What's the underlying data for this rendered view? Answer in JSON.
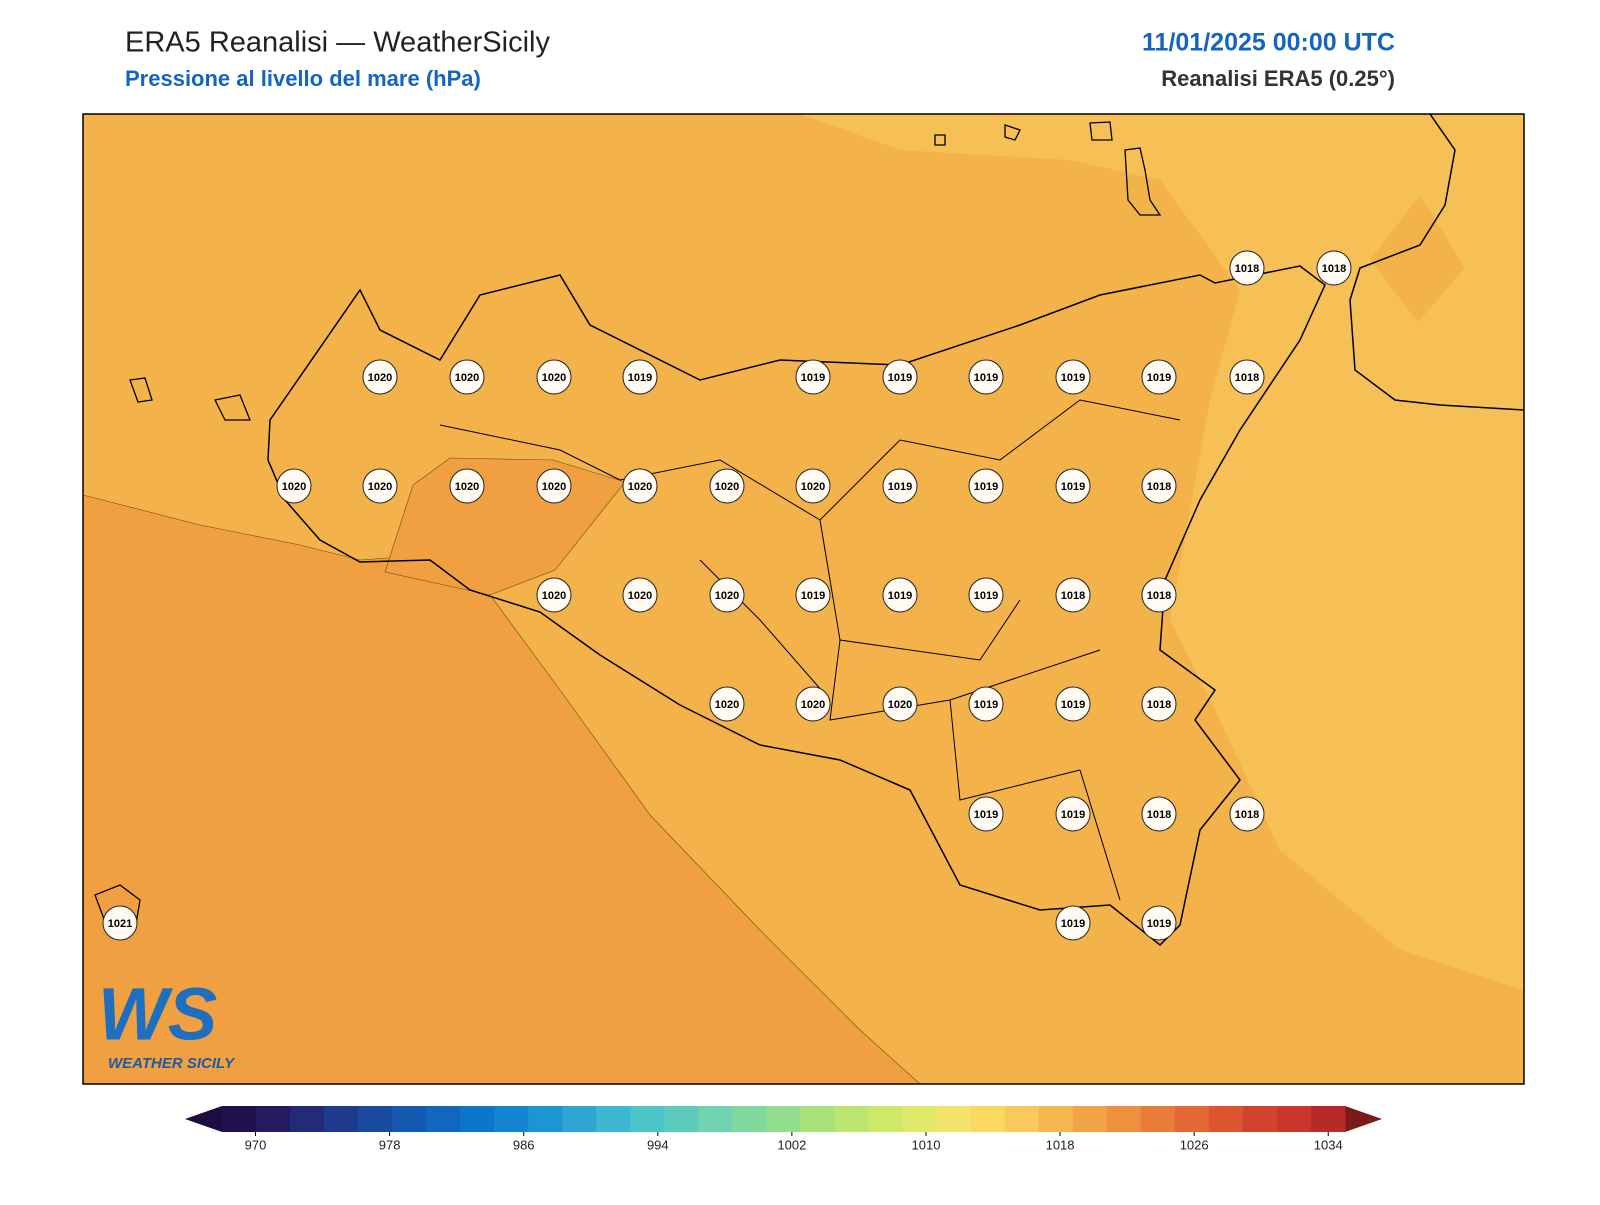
{
  "header": {
    "title": "ERA5 Reanalisi — WeatherSicily",
    "subtitle": "Pressione al livello del mare (hPa)",
    "date": "11/01/2025 00:00 UTC",
    "source": "Reanalisi ERA5 (0.25°)"
  },
  "stations": {
    "values": [
      1018,
      1018,
      1020,
      1020,
      1020,
      1019,
      1019,
      1019,
      1019,
      1019,
      1019,
      1018,
      1020,
      1020,
      1020,
      1020,
      1020,
      1020,
      1020,
      1019,
      1019,
      1019,
      1018,
      1020,
      1020,
      1020,
      1019,
      1019,
      1019,
      1018,
      1018,
      1020,
      1020,
      1020,
      1019,
      1019,
      1018,
      1019,
      1019,
      1018,
      1018,
      1021,
      1019,
      1019
    ]
  },
  "colorbar": {
    "range": [
      968,
      1035
    ],
    "ticks": [
      970,
      978,
      986,
      994,
      1002,
      1010,
      1018,
      1026,
      1034
    ],
    "colors": [
      "#23114f",
      "#241a5e",
      "#232a78",
      "#1e3a8c",
      "#1a4a9e",
      "#1558b0",
      "#1166bd",
      "#0d76c8",
      "#1385cf",
      "#1e95d3",
      "#2da6d4",
      "#3db8d2",
      "#4cc4c8",
      "#5ccdbd",
      "#6ed3ae",
      "#80d99c",
      "#93de8c",
      "#a7e27c",
      "#bbe670",
      "#cee86a",
      "#e0e96a",
      "#f2e56a",
      "#fbd862",
      "#fac95a",
      "#f6b64e",
      "#f2a444",
      "#ee9040",
      "#ea7c3a",
      "#e46834",
      "#dc5430",
      "#d2432e",
      "#c8362c",
      "#b82a2a"
    ],
    "under_color": "#1c0c40",
    "over_color": "#7a1a1a"
  },
  "logo": {
    "mark": "WS",
    "text": "WEATHER SICILY"
  }
}
